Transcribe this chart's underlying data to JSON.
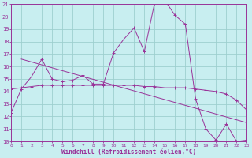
{
  "xlabel": "Windchill (Refroidissement éolien,°C)",
  "xlim": [
    0,
    23
  ],
  "ylim": [
    10,
    21
  ],
  "yticks": [
    10,
    11,
    12,
    13,
    14,
    15,
    16,
    17,
    18,
    19,
    20,
    21
  ],
  "xticks": [
    0,
    1,
    2,
    3,
    4,
    5,
    6,
    7,
    8,
    9,
    10,
    11,
    12,
    13,
    14,
    15,
    16,
    17,
    18,
    19,
    20,
    21,
    22,
    23
  ],
  "line_color": "#993399",
  "bg_color": "#c8eef0",
  "grid_color": "#9ecfcf",
  "curve1_x": [
    0,
    1,
    2,
    3,
    4,
    5,
    6,
    7,
    8,
    9,
    10,
    11,
    12,
    13,
    14,
    15,
    16,
    17,
    18,
    19,
    20,
    21,
    22,
    23
  ],
  "curve1_y": [
    12.3,
    14.2,
    15.2,
    16.6,
    15.0,
    14.8,
    14.9,
    15.3,
    14.6,
    14.6,
    17.1,
    18.2,
    19.1,
    17.2,
    21.1,
    21.3,
    20.1,
    19.4,
    13.4,
    11.0,
    10.1,
    11.4,
    10.0,
    10.1
  ],
  "curve2_x": [
    0,
    1,
    2,
    3,
    4,
    5,
    6,
    7,
    8,
    9,
    10,
    11,
    12,
    13,
    14,
    15,
    16,
    17,
    18,
    19,
    20,
    21,
    22,
    23
  ],
  "curve2_y": [
    14.2,
    14.3,
    14.4,
    14.5,
    14.5,
    14.5,
    14.5,
    14.5,
    14.5,
    14.5,
    14.5,
    14.5,
    14.5,
    14.4,
    14.4,
    14.3,
    14.3,
    14.3,
    14.2,
    14.1,
    14.0,
    13.8,
    13.3,
    12.5
  ],
  "trend_x": [
    1,
    23
  ],
  "trend_y": [
    16.6,
    11.5
  ]
}
